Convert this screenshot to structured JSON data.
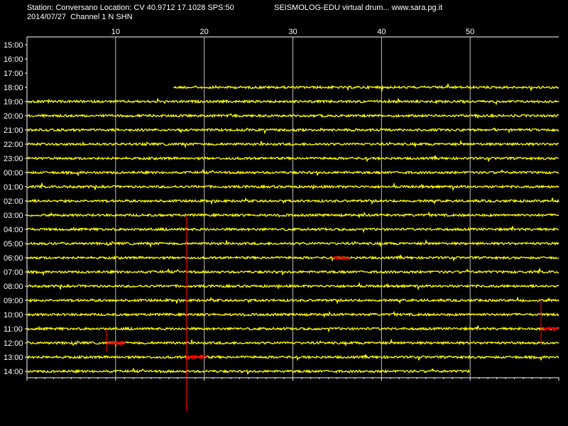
{
  "header": {
    "station_line": "Station: Conversano Location: CV 40.9712 17.1028 SPS:50",
    "date_line": "2014/07/27  Channel 1 N SHN",
    "app_line": "SEISMOLOG-EDU virtual drum... www.sara.pg.it"
  },
  "drum": {
    "minute_ticks": [
      "10",
      "20",
      "30",
      "40",
      "50"
    ],
    "hour_labels": [
      "15:00",
      "16:00",
      "17:00",
      "18:00",
      "19:00",
      "20:00",
      "21:00",
      "22:00",
      "23:00",
      "00:00",
      "01:00",
      "02:00",
      "03:00",
      "04:00",
      "05:00",
      "06:00",
      "07:00",
      "08:00",
      "09:00",
      "10:00",
      "11:00",
      "12:00",
      "13:00",
      "14:00"
    ],
    "colors": {
      "background": "#000000",
      "trace": "#ffff00",
      "event": "#ff0000",
      "grid": "#c0c0c0",
      "text": "#ffffff"
    },
    "traces": [
      {
        "hour": "18:00",
        "start_min": 16.5,
        "end_min": 60
      },
      {
        "hour": "19:00",
        "start_min": 0,
        "end_min": 60
      },
      {
        "hour": "20:00",
        "start_min": 0,
        "end_min": 60
      },
      {
        "hour": "21:00",
        "start_min": 0,
        "end_min": 60
      },
      {
        "hour": "22:00",
        "start_min": 0,
        "end_min": 60
      },
      {
        "hour": "23:00",
        "start_min": 0,
        "end_min": 60
      },
      {
        "hour": "00:00",
        "start_min": 0,
        "end_min": 60
      },
      {
        "hour": "01:00",
        "start_min": 0,
        "end_min": 60
      },
      {
        "hour": "02:00",
        "start_min": 0,
        "end_min": 60
      },
      {
        "hour": "03:00",
        "start_min": 0,
        "end_min": 60
      },
      {
        "hour": "04:00",
        "start_min": 0,
        "end_min": 60
      },
      {
        "hour": "05:00",
        "start_min": 0,
        "end_min": 60
      },
      {
        "hour": "06:00",
        "start_min": 0,
        "end_min": 60
      },
      {
        "hour": "07:00",
        "start_min": 0,
        "end_min": 60
      },
      {
        "hour": "08:00",
        "start_min": 0,
        "end_min": 60
      },
      {
        "hour": "09:00",
        "start_min": 0,
        "end_min": 60
      },
      {
        "hour": "10:00",
        "start_min": 0,
        "end_min": 60
      },
      {
        "hour": "11:00",
        "start_min": 0,
        "end_min": 60
      },
      {
        "hour": "12:00",
        "start_min": 0,
        "end_min": 60
      },
      {
        "hour": "13:00",
        "start_min": 0,
        "end_min": 60
      },
      {
        "hour": "14:00",
        "start_min": 0,
        "end_min": 50
      }
    ],
    "events": [
      {
        "hour": "06:00",
        "start_min": 34.5,
        "end_min": 36.5
      },
      {
        "hour": "11:00",
        "start_min": 58.2,
        "end_min": 60
      },
      {
        "hour": "12:00",
        "start_min": 9.2,
        "end_min": 11.2
      },
      {
        "hour": "13:00",
        "start_min": 18.0,
        "end_min": 20.3
      }
    ],
    "spikes": [
      {
        "hour": "03:00",
        "min": 18.0,
        "up_rows": 0,
        "down_rows": 13.8
      },
      {
        "hour": "11:00",
        "min": 58.0,
        "up_rows": 2.0,
        "down_rows": 1.0
      },
      {
        "hour": "12:00",
        "min": 9.0,
        "up_rows": 1.0,
        "down_rows": 0.6
      }
    ]
  }
}
